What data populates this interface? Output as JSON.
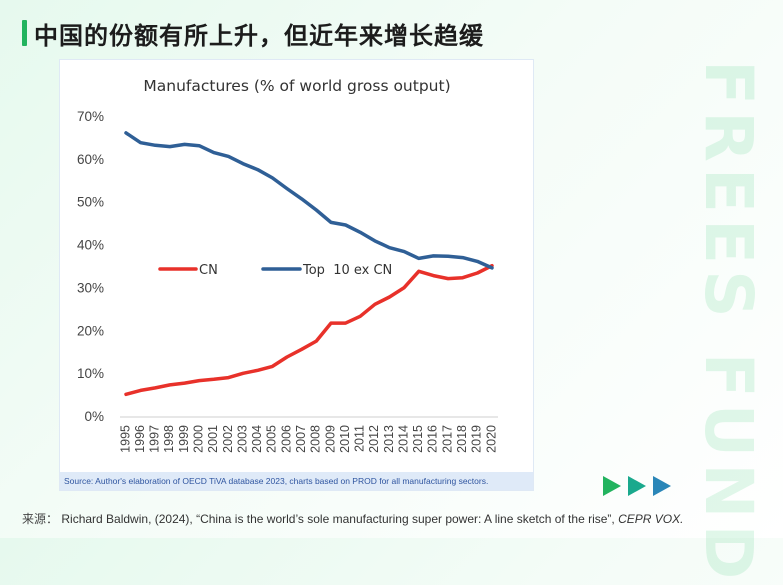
{
  "page": {
    "title": "中国的份额有所上升，但近年来增长趋缓",
    "watermark": "FREES FUND",
    "source_prefix": "来源：",
    "source_text": "Richard Baldwin, (2024), “China is the world’s sole manufacturing super power: A line sketch of the rise”, ",
    "source_italic": "CEPR VOX.",
    "accent_color": "#22b35e"
  },
  "chart_data": {
    "type": "line",
    "title": "Manufactures (% of world gross output)",
    "xlabel": "",
    "ylabel": "",
    "x": [
      "1995",
      "1996",
      "1997",
      "1998",
      "1999",
      "2000",
      "2001",
      "2002",
      "2003",
      "2004",
      "2005",
      "2006",
      "2007",
      "2008",
      "2009",
      "2010",
      "2011",
      "2012",
      "2013",
      "2014",
      "2015",
      "2016",
      "2017",
      "2018",
      "2019",
      "2020"
    ],
    "series": [
      {
        "name": "CN",
        "color": "#e8312a",
        "values": [
          5.3,
          6.2,
          6.8,
          7.5,
          7.9,
          8.5,
          8.8,
          9.2,
          10.2,
          10.9,
          11.8,
          14.0,
          15.8,
          17.7,
          21.9,
          21.9,
          23.5,
          26.3,
          28.0,
          30.2,
          34.0,
          33.0,
          32.3,
          32.5,
          33.6,
          35.3
        ]
      },
      {
        "name": "Top  10 ex CN",
        "color": "#2f5f96",
        "values": [
          66.3,
          64.0,
          63.4,
          63.1,
          63.6,
          63.3,
          61.7,
          60.8,
          59.1,
          57.7,
          55.8,
          53.3,
          50.9,
          48.3,
          45.4,
          44.8,
          43.1,
          41.1,
          39.5,
          38.6,
          37.0,
          37.6,
          37.5,
          37.2,
          36.3,
          34.8
        ]
      }
    ],
    "ylim": [
      0,
      70
    ],
    "yticks": [
      "0%",
      "10%",
      "20%",
      "30%",
      "40%",
      "50%",
      "60%",
      "70%"
    ],
    "grid": false,
    "legend_position": "center",
    "source_note": "Source: Author's elaboration of OECD   TiVA  database 2023, charts based on PROD for all manufacturing sectors."
  }
}
